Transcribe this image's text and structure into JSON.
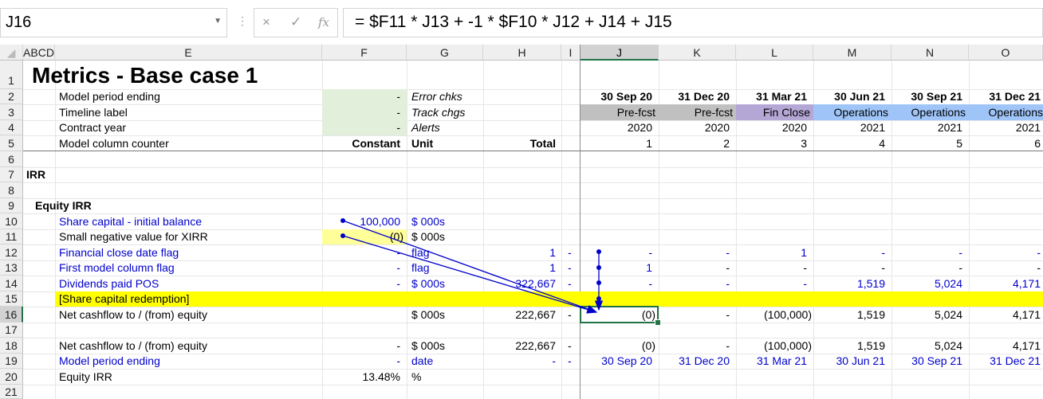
{
  "formula_bar": {
    "name_box": "J16",
    "cancel_icon": "×",
    "enter_icon": "✓",
    "fx_icon": "fx",
    "formula": "= $F11 * J13 + -1 * $F10 * J12 + J14 + J15"
  },
  "columns": [
    "ABCD",
    "E",
    "F",
    "G",
    "H",
    "I",
    "J",
    "K",
    "L",
    "M",
    "N",
    "O"
  ],
  "rows": [
    "1",
    "2",
    "3",
    "4",
    "5",
    "6",
    "7",
    "8",
    "9",
    "10",
    "11",
    "12",
    "13",
    "14",
    "15",
    "16",
    "17",
    "18",
    "19",
    "20",
    "21"
  ],
  "sheet": {
    "title": "Metrics - Base case 1",
    "r2": {
      "label": "Model period ending",
      "f": "-",
      "g": "Error chks",
      "dates": [
        "30 Sep 20",
        "31 Dec 20",
        "31 Mar 21",
        "30 Jun 21",
        "30 Sep 21",
        "31 Dec 21"
      ]
    },
    "r3": {
      "label": "Timeline label",
      "f": "-",
      "g": "Track chgs",
      "phases": [
        "Pre-fcst",
        "Pre-fcst",
        "Fin Close",
        "Operations",
        "Operations",
        "Operations"
      ]
    },
    "r4": {
      "label": "Contract year",
      "f": "-",
      "g": "Alerts",
      "years": [
        "2020",
        "2020",
        "2020",
        "2021",
        "2021",
        "2021"
      ]
    },
    "r5": {
      "label": "Model column counter",
      "f": "Constant",
      "g": "Unit",
      "h": "Total",
      "counters": [
        "1",
        "2",
        "3",
        "4",
        "5",
        "6"
      ]
    },
    "r7": {
      "label": "IRR"
    },
    "r9": {
      "label": "Equity IRR"
    },
    "r10": {
      "label": "Share capital - initial balance",
      "f": "100,000",
      "g": "$ 000s"
    },
    "r11": {
      "label": "Small negative value for XIRR",
      "f": "(0)",
      "g": "$ 000s"
    },
    "r12": {
      "label": "Financial close date flag",
      "f": "-",
      "g": "flag",
      "h": "1",
      "i": "-",
      "vals": [
        "-",
        "-",
        "1",
        "-",
        "-",
        "-"
      ]
    },
    "r13": {
      "label": "First model column flag",
      "f": "-",
      "g": "flag",
      "h": "1",
      "i": "-",
      "vals": [
        "1",
        "-",
        "-",
        "-",
        "-",
        "-"
      ]
    },
    "r14": {
      "label": "Dividends paid POS",
      "f": "-",
      "g": "$ 000s",
      "h": "322,667",
      "i": "-",
      "vals": [
        "-",
        "-",
        "-",
        "1,519",
        "5,024",
        "4,171"
      ]
    },
    "r15": {
      "label": "[Share capital redemption]"
    },
    "r16": {
      "label": "Net cashflow to / (from) equity",
      "g": "$ 000s",
      "h": "222,667",
      "i": "-",
      "vals": [
        "(0)",
        "-",
        "(100,000)",
        "1,519",
        "5,024",
        "4,171"
      ]
    },
    "r18": {
      "label": "Net cashflow to / (from) equity",
      "f": "-",
      "g": "$ 000s",
      "h": "222,667",
      "i": "-",
      "vals": [
        "(0)",
        "-",
        "(100,000)",
        "1,519",
        "5,024",
        "4,171"
      ]
    },
    "r19": {
      "label": "Model period ending",
      "f": "-",
      "g": "date",
      "h": "-",
      "i": "-",
      "vals": [
        "30 Sep 20",
        "31 Dec 20",
        "31 Mar 21",
        "30 Jun 21",
        "30 Sep 21",
        "31 Dec 21"
      ]
    },
    "r20": {
      "label": "Equity IRR",
      "f": "13.48%",
      "g": "%"
    }
  },
  "colors": {
    "green_input": "#e2efda",
    "yellow_input": "#ffff99",
    "highlight": "#ffff00",
    "prefcst": "#c0c0c0",
    "finclose": "#b4a7d6",
    "operations": "#9fc5f8",
    "trace_arrow": "#0000cc",
    "selection": "#217346"
  }
}
